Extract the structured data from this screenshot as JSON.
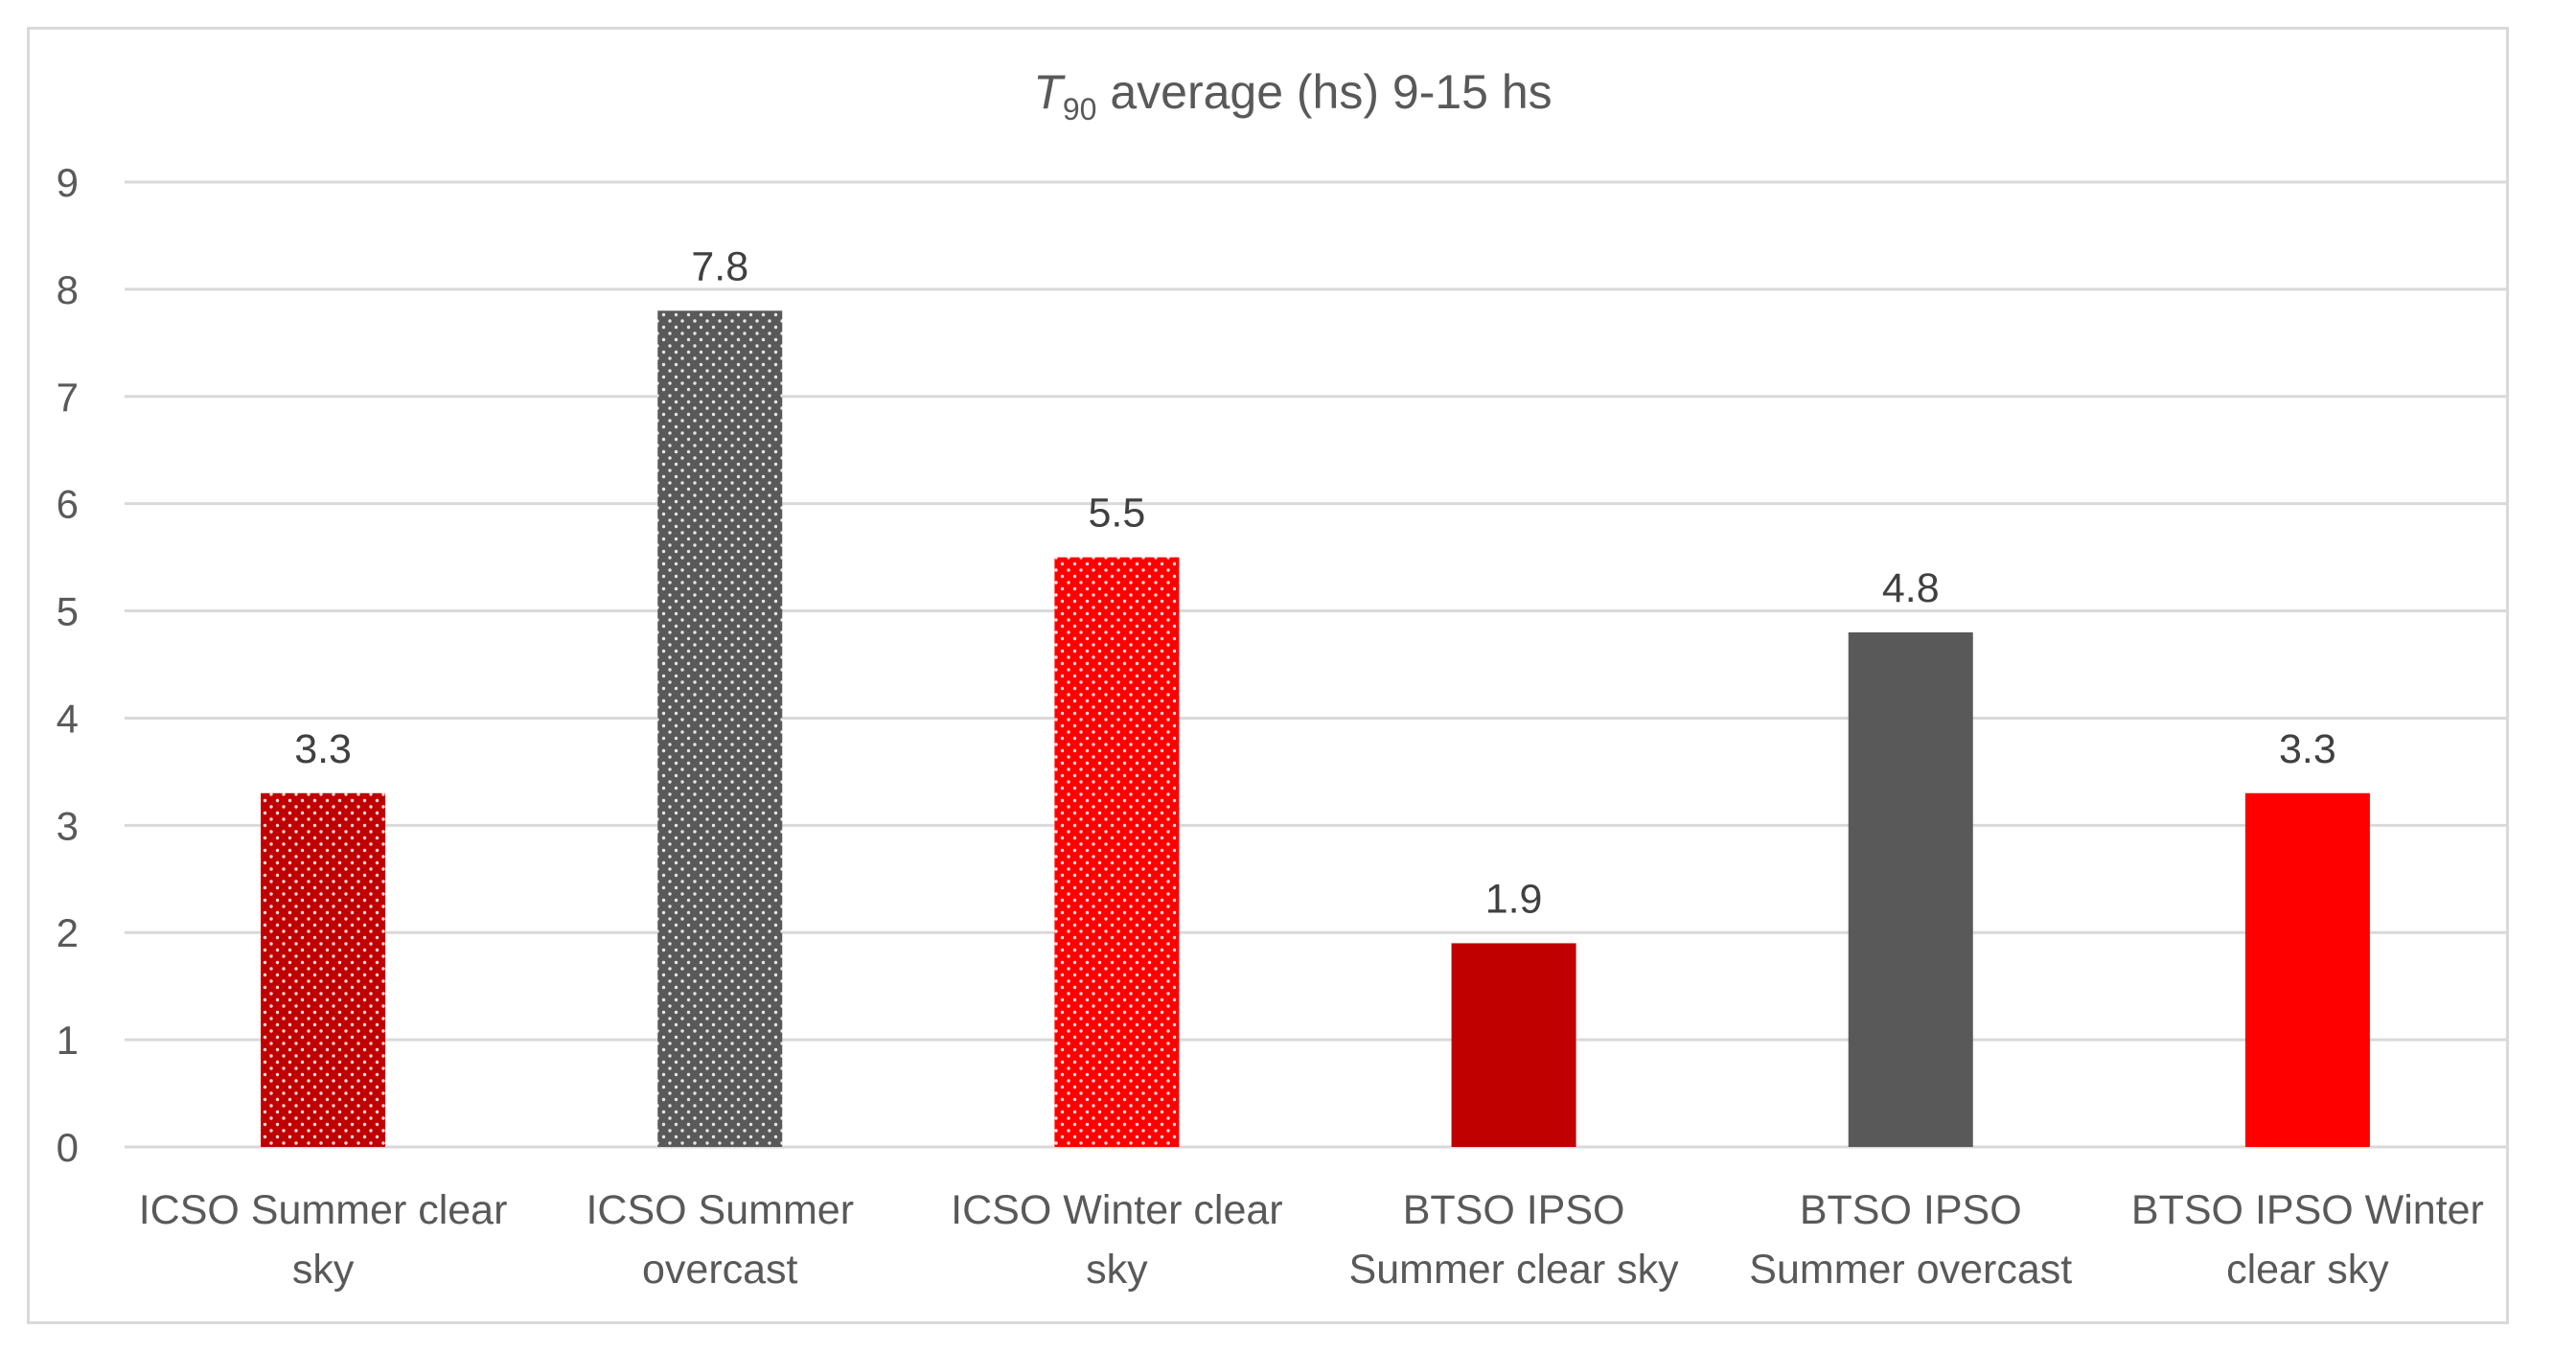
{
  "chart_data": {
    "type": "bar",
    "title": {
      "symbol": "T",
      "subscript": "90",
      "rest": " average  (hs) 9-15 hs"
    },
    "xlabel": "",
    "ylabel": "",
    "ylim": [
      0,
      9
    ],
    "yticks": [
      "0",
      "1",
      "2",
      "3",
      "4",
      "5",
      "6",
      "7",
      "8",
      "9"
    ],
    "grid": true,
    "legend": "none",
    "categories": [
      [
        "ICSO Summer clear",
        "sky"
      ],
      [
        "ICSO Summer",
        "overcast"
      ],
      [
        "ICSO Winter clear",
        "sky"
      ],
      [
        "BTSO  IPSO",
        "Summer clear sky"
      ],
      [
        "BTSO  IPSO",
        "Summer overcast"
      ],
      [
        "BTSO  IPSO Winter",
        "clear sky"
      ]
    ],
    "values": [
      3.3,
      7.8,
      5.5,
      1.9,
      4.8,
      3.3
    ],
    "data_labels": [
      "3.3",
      "7.8",
      "5.5",
      "1.9",
      "4.8",
      "3.3"
    ],
    "bar_colors": [
      "#c00000",
      "#595959",
      "#ff0000",
      "#c00000",
      "#595959",
      "#ff0000"
    ],
    "bar_patterns": [
      "dotted",
      "dotted",
      "dotted",
      "solid",
      "solid",
      "solid"
    ]
  }
}
